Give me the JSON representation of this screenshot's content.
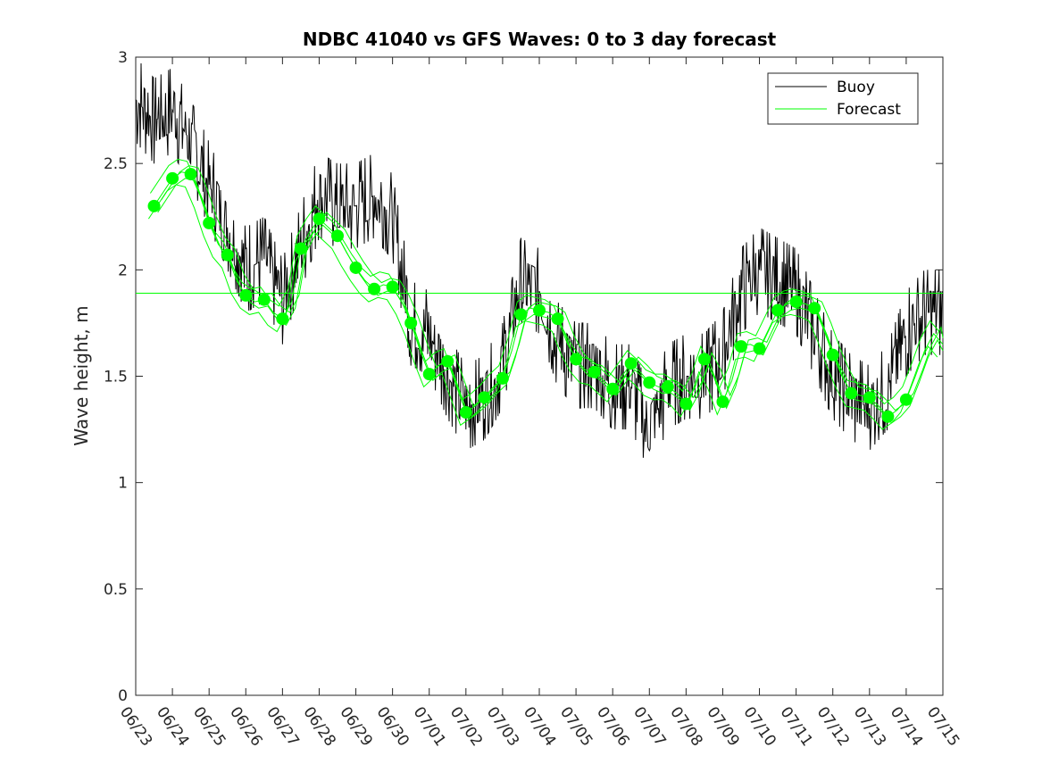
{
  "chart_data": {
    "type": "line",
    "title": "NDBC 41040 vs GFS Waves: 0 to 3 day forecast",
    "xlabel": "",
    "ylabel": "Wave height, m",
    "x_ticks": [
      "06/23",
      "06/24",
      "06/25",
      "06/26",
      "06/27",
      "06/28",
      "06/29",
      "06/30",
      "07/01",
      "07/02",
      "07/03",
      "07/04",
      "07/05",
      "07/06",
      "07/07",
      "07/08",
      "07/09",
      "07/10",
      "07/11",
      "07/12",
      "07/13",
      "07/14",
      "07/15"
    ],
    "y_ticks": [
      "0",
      "0.5",
      "1",
      "1.5",
      "2",
      "2.5",
      "3"
    ],
    "xlim": [
      0,
      22
    ],
    "ylim": [
      0,
      3
    ],
    "grid": false,
    "legend_position": "top-right",
    "colors": {
      "buoy": "#000000",
      "forecast": "#00ff00"
    },
    "series": [
      {
        "name": "Buoy",
        "color": "#000000",
        "x_days": [
          0,
          0.5,
          1,
          1.5,
          2,
          2.5,
          3,
          3.5,
          4,
          4.5,
          5,
          5.5,
          6,
          6.5,
          7,
          7.5,
          8,
          8.5,
          9,
          9.5,
          10,
          10.5,
          11,
          11.5,
          12,
          12.5,
          13,
          13.5,
          14,
          14.5,
          15,
          15.5,
          16,
          16.5,
          17,
          17.5,
          18,
          18.5,
          19,
          19.5,
          20,
          20.5,
          21,
          21.5,
          22
        ],
        "values": [
          2.8,
          2.7,
          2.75,
          2.6,
          2.4,
          2.2,
          2.0,
          2.05,
          1.85,
          2.1,
          2.35,
          2.3,
          2.3,
          2.35,
          2.25,
          1.75,
          1.7,
          1.5,
          1.35,
          1.4,
          1.55,
          1.95,
          1.9,
          1.65,
          1.55,
          1.55,
          1.45,
          1.45,
          1.25,
          1.45,
          1.5,
          1.5,
          1.6,
          1.9,
          2.0,
          1.95,
          1.9,
          1.7,
          1.5,
          1.4,
          1.35,
          1.45,
          1.7,
          1.8,
          1.8
        ]
      },
      {
        "name": "Forecast",
        "color": "#00ff00",
        "markers_x_days": [
          0.5,
          1,
          1.5,
          2,
          2.5,
          3,
          3.5,
          4,
          4.5,
          5,
          5.5,
          6,
          6.5,
          7,
          7.5,
          8,
          8.5,
          9,
          9.5,
          10,
          10.5,
          11,
          11.5,
          12,
          12.5,
          13,
          13.5,
          14,
          14.5,
          15,
          15.5,
          16,
          16.5,
          17,
          17.5,
          18,
          18.5,
          19,
          19.5,
          20,
          20.5,
          21
        ],
        "markers_values": [
          2.3,
          2.43,
          2.45,
          2.22,
          2.07,
          1.88,
          1.86,
          1.77,
          2.1,
          2.24,
          2.16,
          2.01,
          1.91,
          1.92,
          1.75,
          1.51,
          1.57,
          1.33,
          1.4,
          1.49,
          1.79,
          1.81,
          1.77,
          1.58,
          1.52,
          1.44,
          1.56,
          1.47,
          1.45,
          1.37,
          1.58,
          1.38,
          1.64,
          1.63,
          1.81,
          1.85,
          1.82,
          1.6,
          1.42,
          1.4,
          1.31,
          1.39
        ],
        "line_x_days": [
          0.5,
          1,
          1.25,
          1.5,
          1.75,
          2,
          2.25,
          2.5,
          2.75,
          3,
          3.25,
          3.5,
          3.75,
          4,
          4.25,
          4.5,
          4.75,
          5,
          5.25,
          5.5,
          5.75,
          6,
          6.25,
          6.5,
          6.75,
          7,
          7.25,
          7.5,
          7.75,
          8,
          8.25,
          8.5,
          8.75,
          9,
          9.25,
          9.5,
          9.75,
          10,
          10.25,
          10.5,
          10.75,
          11,
          11.25,
          11.5,
          11.75,
          12,
          12.25,
          12.5,
          12.75,
          13,
          13.25,
          13.5,
          13.75,
          14,
          14.25,
          14.5,
          14.75,
          15,
          15.25,
          15.5,
          15.75,
          16,
          16.25,
          16.5,
          16.75,
          17,
          17.25,
          17.5,
          17.75,
          18,
          18.25,
          18.5,
          18.75,
          19,
          19.25,
          19.5,
          19.75,
          20,
          20.25,
          20.5,
          20.75,
          21,
          21.25,
          21.5,
          21.75,
          22
        ],
        "line_values": [
          2.3,
          2.43,
          2.46,
          2.45,
          2.35,
          2.22,
          2.12,
          2.07,
          1.95,
          1.88,
          1.85,
          1.86,
          1.8,
          1.77,
          1.85,
          2.1,
          2.18,
          2.24,
          2.2,
          2.16,
          2.08,
          2.01,
          1.95,
          1.91,
          1.93,
          1.92,
          1.85,
          1.75,
          1.62,
          1.51,
          1.55,
          1.57,
          1.45,
          1.33,
          1.36,
          1.4,
          1.45,
          1.49,
          1.62,
          1.79,
          1.82,
          1.81,
          1.8,
          1.77,
          1.66,
          1.58,
          1.53,
          1.52,
          1.48,
          1.44,
          1.5,
          1.56,
          1.52,
          1.47,
          1.45,
          1.45,
          1.42,
          1.37,
          1.45,
          1.58,
          1.5,
          1.38,
          1.48,
          1.64,
          1.65,
          1.63,
          1.72,
          1.81,
          1.84,
          1.85,
          1.84,
          1.82,
          1.72,
          1.6,
          1.5,
          1.42,
          1.41,
          1.4,
          1.36,
          1.31,
          1.34,
          1.39,
          1.5,
          1.62,
          1.7,
          1.65
        ],
        "reference_line": 1.89
      }
    ]
  }
}
